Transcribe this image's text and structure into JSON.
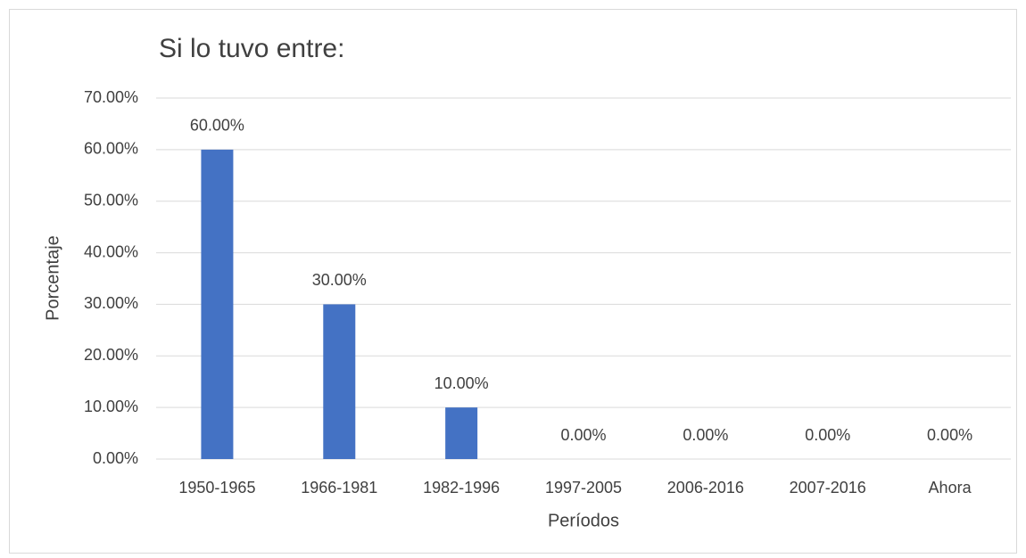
{
  "chart_data": {
    "type": "bar",
    "title": "Si lo tuvo entre:",
    "x_label": "Períodos",
    "y_label": "Porcentaje",
    "categories": [
      "1950-1965",
      "1966-1981",
      "1982-1996",
      "1997-2005",
      "2006-2016",
      "2007-2016",
      "Ahora"
    ],
    "values": [
      60,
      30,
      10,
      0,
      0,
      0,
      0
    ],
    "value_labels": [
      "60.00%",
      "30.00%",
      "10.00%",
      "0.00%",
      "0.00%",
      "0.00%",
      "0.00%"
    ],
    "color": "#4472c4",
    "ylim": [
      0,
      70
    ],
    "yticks": [
      {
        "value": 0,
        "label": "0.00%"
      },
      {
        "value": 10,
        "label": "10.00%"
      },
      {
        "value": 20,
        "label": "20.00%"
      },
      {
        "value": 30,
        "label": "30.00%"
      },
      {
        "value": 40,
        "label": "40.00%"
      },
      {
        "value": 50,
        "label": "50.00%"
      },
      {
        "value": 60,
        "label": "60.00%"
      },
      {
        "value": 70,
        "label": "70.00%"
      }
    ],
    "grid": true
  }
}
